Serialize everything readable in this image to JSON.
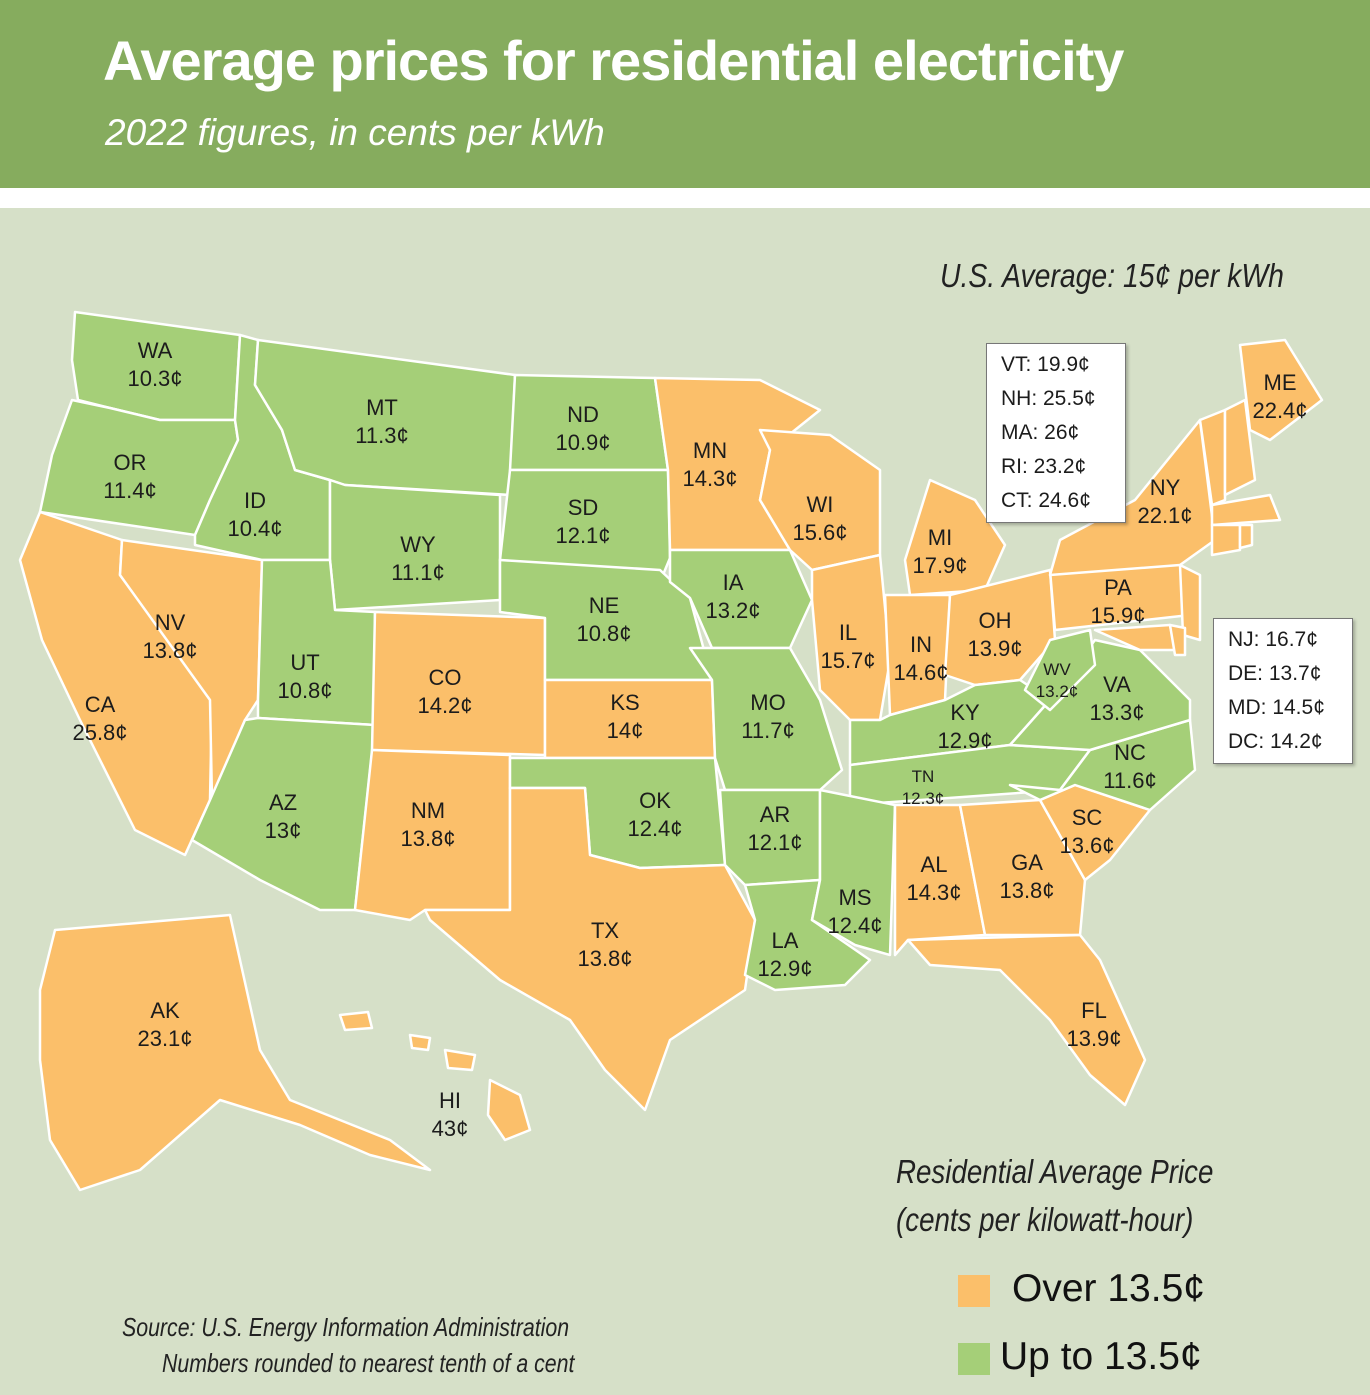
{
  "title": "Average prices for residential electricity",
  "subtitle": "2022 figures, in cents per kWh",
  "us_average": "U.S. Average: 15¢ per kWh",
  "colors": {
    "over": "#fbbf6a",
    "under": "#a5cf78",
    "header": "#86ac5e",
    "background": "#d6e0c8"
  },
  "states": [
    {
      "abbr": "WA",
      "price": "10.3¢",
      "category": "under"
    },
    {
      "abbr": "OR",
      "price": "11.4¢",
      "category": "under"
    },
    {
      "abbr": "CA",
      "price": "25.8¢",
      "category": "over"
    },
    {
      "abbr": "NV",
      "price": "13.8¢",
      "category": "over"
    },
    {
      "abbr": "ID",
      "price": "10.4¢",
      "category": "under"
    },
    {
      "abbr": "MT",
      "price": "11.3¢",
      "category": "under"
    },
    {
      "abbr": "WY",
      "price": "11.1¢",
      "category": "under"
    },
    {
      "abbr": "UT",
      "price": "10.8¢",
      "category": "under"
    },
    {
      "abbr": "AZ",
      "price": "13¢",
      "category": "under"
    },
    {
      "abbr": "CO",
      "price": "14.2¢",
      "category": "over"
    },
    {
      "abbr": "NM",
      "price": "13.8¢",
      "category": "over"
    },
    {
      "abbr": "ND",
      "price": "10.9¢",
      "category": "under"
    },
    {
      "abbr": "SD",
      "price": "12.1¢",
      "category": "under"
    },
    {
      "abbr": "NE",
      "price": "10.8¢",
      "category": "under"
    },
    {
      "abbr": "KS",
      "price": "14¢",
      "category": "over"
    },
    {
      "abbr": "OK",
      "price": "12.4¢",
      "category": "under"
    },
    {
      "abbr": "TX",
      "price": "13.8¢",
      "category": "over"
    },
    {
      "abbr": "MN",
      "price": "14.3¢",
      "category": "over"
    },
    {
      "abbr": "IA",
      "price": "13.2¢",
      "category": "under"
    },
    {
      "abbr": "MO",
      "price": "11.7¢",
      "category": "under"
    },
    {
      "abbr": "AR",
      "price": "12.1¢",
      "category": "under"
    },
    {
      "abbr": "LA",
      "price": "12.9¢",
      "category": "under"
    },
    {
      "abbr": "WI",
      "price": "15.6¢",
      "category": "over"
    },
    {
      "abbr": "IL",
      "price": "15.7¢",
      "category": "over"
    },
    {
      "abbr": "MI",
      "price": "17.9¢",
      "category": "over"
    },
    {
      "abbr": "IN",
      "price": "14.6¢",
      "category": "over"
    },
    {
      "abbr": "OH",
      "price": "13.9¢",
      "category": "over"
    },
    {
      "abbr": "KY",
      "price": "12.9¢",
      "category": "under"
    },
    {
      "abbr": "TN",
      "price": "12.3¢",
      "category": "under"
    },
    {
      "abbr": "MS",
      "price": "12.4¢",
      "category": "under"
    },
    {
      "abbr": "AL",
      "price": "14.3¢",
      "category": "over"
    },
    {
      "abbr": "GA",
      "price": "13.8¢",
      "category": "over"
    },
    {
      "abbr": "FL",
      "price": "13.9¢",
      "category": "over"
    },
    {
      "abbr": "SC",
      "price": "13.6¢",
      "category": "over"
    },
    {
      "abbr": "NC",
      "price": "11.6¢",
      "category": "under"
    },
    {
      "abbr": "VA",
      "price": "13.3¢",
      "category": "under"
    },
    {
      "abbr": "WV",
      "price": "13.2¢",
      "category": "under"
    },
    {
      "abbr": "PA",
      "price": "15.9¢",
      "category": "over"
    },
    {
      "abbr": "NY",
      "price": "22.1¢",
      "category": "over"
    },
    {
      "abbr": "ME",
      "price": "22.4¢",
      "category": "over"
    },
    {
      "abbr": "AK",
      "price": "23.1¢",
      "category": "over"
    },
    {
      "abbr": "HI",
      "price": "43¢",
      "category": "over"
    }
  ],
  "callouts": {
    "northeast": [
      "VT: 19.9¢",
      "NH: 25.5¢",
      "MA: 26¢",
      "RI: 23.2¢",
      "CT: 24.6¢"
    ],
    "mid_atlantic": [
      "NJ: 16.7¢",
      "DE: 13.7¢",
      "MD: 14.5¢",
      "DC: 14.2¢"
    ]
  },
  "legend": {
    "title_line1": "Residential Average Price",
    "title_line2": "(cents per kilowatt-hour)",
    "over_label": "Over 13.5¢",
    "under_label": "Up to 13.5¢"
  },
  "source": {
    "line1": "Source: U.S. Energy Information Administration",
    "line2": "Numbers rounded to nearest tenth of a cent"
  }
}
